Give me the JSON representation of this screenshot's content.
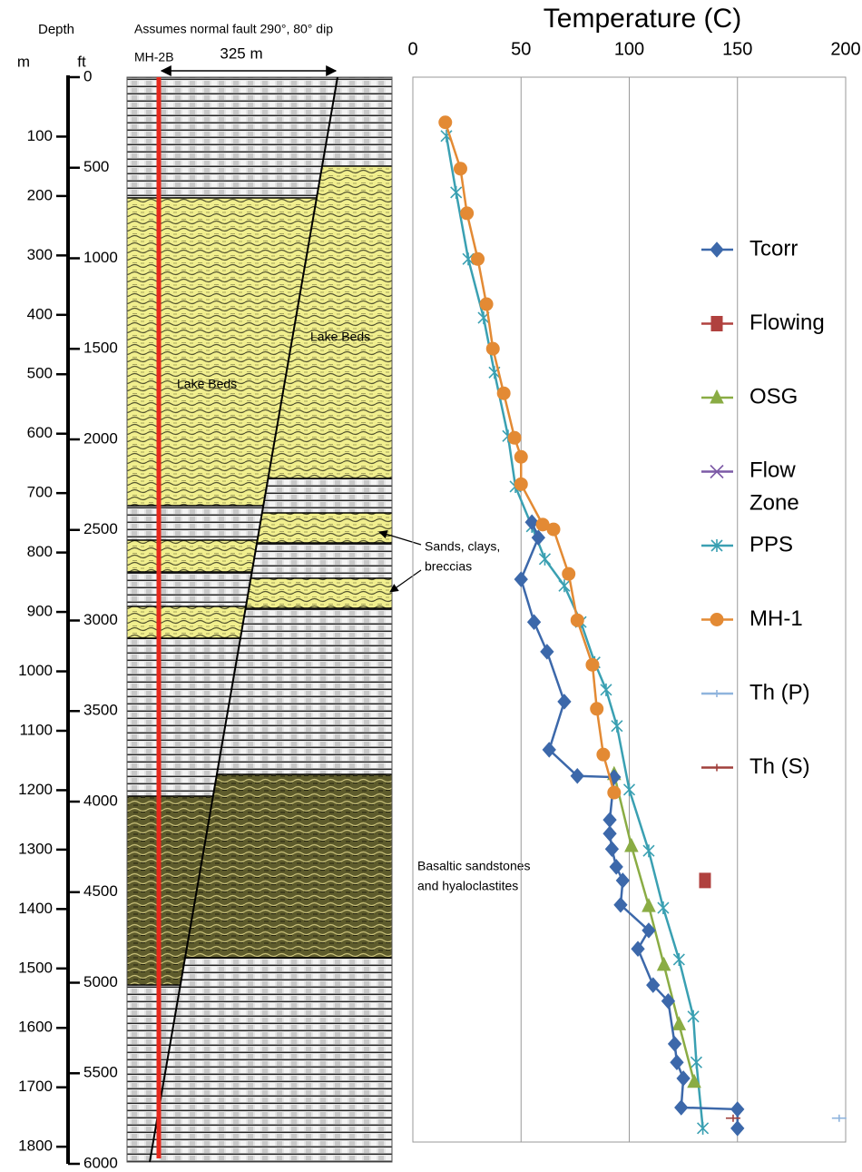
{
  "lithology": {
    "note": "Assumes normal fault 290°, 80° dip",
    "well": "MH-2B",
    "offset": "325 m",
    "upper_unit": "Lake Beds",
    "lower_unit": "Lake Beds",
    "sands": [
      "Sands, clays,",
      "breccias"
    ],
    "basalt": [
      "Basaltic sandstones",
      "and hyaloclastites"
    ]
  },
  "chart_data": {
    "type": "line",
    "title": "Temperature (C)",
    "depth_label": "Depth",
    "ylabel": "m",
    "y2label": "ft",
    "xlim": [
      0,
      200
    ],
    "xticks": [
      0,
      50,
      100,
      150,
      200
    ],
    "ylim": [
      0,
      1828.8
    ],
    "yticks": [
      100,
      200,
      300,
      400,
      500,
      600,
      700,
      800,
      900,
      1000,
      1100,
      1200,
      1300,
      1400,
      1500,
      1600,
      1700,
      1800
    ],
    "y2lim": [
      0,
      6000
    ],
    "y2ticks": [
      0,
      500,
      1000,
      1500,
      2000,
      2500,
      3000,
      3500,
      4000,
      4500,
      5000,
      5500,
      6000
    ],
    "grid": true,
    "series": [
      {
        "name": "Tcorr",
        "color": "#3c68aa",
        "marker": "diamond",
        "x": [
          55,
          58,
          50,
          56,
          62,
          70,
          63,
          76,
          93,
          91,
          91,
          92,
          94,
          97,
          96,
          109,
          104,
          111,
          118,
          121,
          122,
          125,
          124,
          150,
          150
        ],
        "y": [
          749,
          775,
          845,
          917,
          967,
          1051,
          1132,
          1176,
          1178,
          1250,
          1273,
          1299,
          1329,
          1352,
          1393,
          1436,
          1467,
          1528,
          1555,
          1627,
          1658,
          1685,
          1734,
          1737,
          1769
        ]
      },
      {
        "name": "Flowing",
        "color": "#b0413e",
        "marker": "square",
        "x": [
          135
        ],
        "y": [
          1352
        ]
      },
      {
        "name": "OSG",
        "color": "#8aac44",
        "marker": "triangle",
        "x": [
          93,
          101,
          109,
          116,
          123,
          130
        ],
        "y": [
          1173,
          1294,
          1395,
          1494,
          1594,
          1691
        ]
      },
      {
        "name": "Flow Zone",
        "color": "#7c5aa6",
        "marker": "cross",
        "x": [],
        "y": []
      },
      {
        "name": "PPS",
        "color": "#3aa0b2",
        "marker": "asterisk",
        "x": [
          15.5,
          20,
          25.6,
          32.7,
          37.7,
          44,
          47.4,
          55,
          61,
          70,
          77.6,
          84,
          89.3,
          94.3,
          100,
          109,
          115.7,
          123,
          129.6,
          131,
          134
        ],
        "y": [
          99,
          194,
          306,
          405,
          497,
          604,
          689,
          756,
          811,
          856,
          917,
          985,
          1031,
          1092,
          1199,
          1302,
          1398,
          1485,
          1581,
          1658,
          1769
        ]
      },
      {
        "name": "MH-1",
        "color": "#e38a34",
        "marker": "circle",
        "x": [
          15,
          22,
          25,
          30,
          34,
          37,
          42,
          47,
          50,
          50,
          60,
          65,
          72,
          76,
          83,
          85,
          88,
          93
        ],
        "y": [
          76,
          154,
          229,
          306,
          382,
          457,
          532,
          607,
          639,
          685,
          753,
          761,
          836,
          914,
          989,
          1063,
          1140,
          1204
        ]
      },
      {
        "name": "Th (P)",
        "color": "#8fb4dd",
        "marker": "hline",
        "x": [
          197
        ],
        "y": [
          1752
        ]
      },
      {
        "name": "Th (S)",
        "color": "#a0403c",
        "marker": "hline",
        "x": [
          148
        ],
        "y": [
          1752
        ]
      }
    ]
  }
}
